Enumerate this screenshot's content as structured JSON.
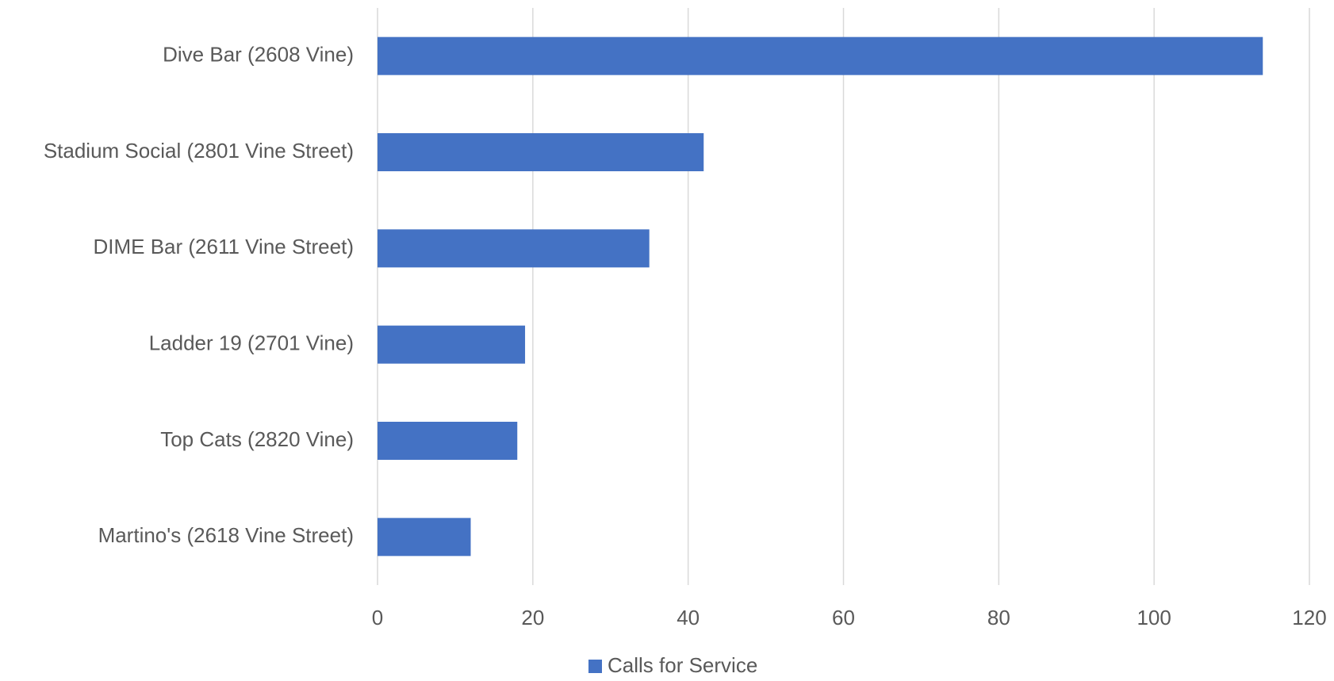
{
  "chart_data": {
    "type": "bar",
    "orientation": "horizontal",
    "categories": [
      "Dive Bar (2608 Vine)",
      "Stadium Social (2801 Vine Street)",
      "DIME Bar (2611 Vine Street)",
      "Ladder 19 (2701 Vine)",
      "Top Cats (2820 Vine)",
      "Martino's (2618 Vine Street)"
    ],
    "series": [
      {
        "name": "Calls for Service",
        "values": [
          114,
          42,
          35,
          19,
          18,
          12
        ],
        "color": "#4472C4"
      }
    ],
    "xlim": [
      0,
      120
    ],
    "x_ticks": [
      0,
      20,
      40,
      60,
      80,
      100,
      120
    ],
    "title": "",
    "xlabel": "",
    "ylabel": "",
    "grid": "vertical",
    "legend": "bottom",
    "colors": {
      "gridline": "#D9D9D9",
      "text": "#595959"
    }
  }
}
